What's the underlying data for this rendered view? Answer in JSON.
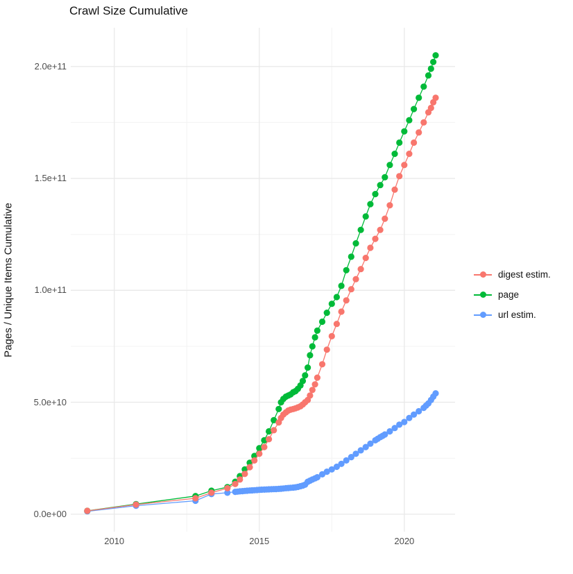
{
  "chart_data": {
    "type": "line",
    "title": "Crawl Size Cumulative",
    "xlabel": "",
    "ylabel": "Pages / Unique Items Cumulative",
    "legend_position": "right",
    "grid": true,
    "panel_background": "#ffffff",
    "grid_major_color": "#e9e9e9",
    "grid_minor_color": "#f3f3f3",
    "xlim": [
      2008.5,
      2021.75
    ],
    "ylim": [
      -7800000000.0,
      217300000000.0
    ],
    "x_ticks_major": [
      2010,
      2015,
      2020
    ],
    "x_tick_labels": [
      "2010",
      "2015",
      "2020"
    ],
    "x_ticks_minor": [
      2012.5,
      2017.5
    ],
    "y_ticks_major": [
      0,
      50000000000.0,
      100000000000.0,
      150000000000.0,
      200000000000.0
    ],
    "y_tick_labels": [
      "0.0e+00",
      "5.0e+10",
      "1.0e+11",
      "1.5e+11",
      "2.0e+11"
    ],
    "y_ticks_minor": [
      25000000000.0,
      75000000000.0,
      125000000000.0,
      175000000000.0
    ],
    "series": [
      {
        "name": "digest estim.",
        "color": "#F8766D",
        "points": [
          [
            2009.07,
            1500000000.0
          ],
          [
            2010.75,
            4300000000.0
          ],
          [
            2012.8,
            7100000000.0
          ],
          [
            2013.35,
            9600000000.0
          ],
          [
            2013.9,
            11600000000.0
          ],
          [
            2014.17,
            13500000000.0
          ],
          [
            2014.33,
            15500000000.0
          ],
          [
            2014.5,
            18000000000.0
          ],
          [
            2014.67,
            21000000000.0
          ],
          [
            2014.83,
            24000000000.0
          ],
          [
            2015.0,
            27000000000.0
          ],
          [
            2015.17,
            30000000000.0
          ],
          [
            2015.33,
            33500000000.0
          ],
          [
            2015.5,
            37500000000.0
          ],
          [
            2015.67,
            41000000000.0
          ],
          [
            2015.75,
            43000000000.0
          ],
          [
            2015.83,
            44500000000.0
          ],
          [
            2015.92,
            45500000000.0
          ],
          [
            2016.0,
            46300000000.0
          ],
          [
            2016.08,
            46700000000.0
          ],
          [
            2016.17,
            47000000000.0
          ],
          [
            2016.25,
            47300000000.0
          ],
          [
            2016.33,
            47700000000.0
          ],
          [
            2016.42,
            48200000000.0
          ],
          [
            2016.5,
            49000000000.0
          ],
          [
            2016.58,
            50000000000.0
          ],
          [
            2016.67,
            51000000000.0
          ],
          [
            2016.75,
            53000000000.0
          ],
          [
            2016.83,
            55500000000.0
          ],
          [
            2016.92,
            58000000000.0
          ],
          [
            2017.0,
            61000000000.0
          ],
          [
            2017.17,
            67000000000.0
          ],
          [
            2017.33,
            73500000000.0
          ],
          [
            2017.5,
            79500000000.0
          ],
          [
            2017.67,
            85000000000.0
          ],
          [
            2017.83,
            90500000000.0
          ],
          [
            2018.0,
            95500000000.0
          ],
          [
            2018.17,
            100500000000.0
          ],
          [
            2018.33,
            105000000000.0
          ],
          [
            2018.5,
            109500000000.0
          ],
          [
            2018.67,
            114500000000.0
          ],
          [
            2018.83,
            119000000000.0
          ],
          [
            2019.0,
            123000000000.0
          ],
          [
            2019.17,
            127000000000.0
          ],
          [
            2019.33,
            132000000000.0
          ],
          [
            2019.5,
            138000000000.0
          ],
          [
            2019.67,
            145000000000.0
          ],
          [
            2019.83,
            151000000000.0
          ],
          [
            2020.0,
            156000000000.0
          ],
          [
            2020.17,
            161000000000.0
          ],
          [
            2020.33,
            166000000000.0
          ],
          [
            2020.5,
            170500000000.0
          ],
          [
            2020.67,
            175000000000.0
          ],
          [
            2020.83,
            179500000000.0
          ],
          [
            2020.92,
            181500000000.0
          ],
          [
            2021.0,
            184000000000.0
          ],
          [
            2021.08,
            186000000000.0
          ]
        ]
      },
      {
        "name": "page",
        "color": "#00BA38",
        "points": [
          [
            2009.07,
            1500000000.0
          ],
          [
            2010.75,
            4500000000.0
          ],
          [
            2012.8,
            8100000000.0
          ],
          [
            2013.35,
            10500000000.0
          ],
          [
            2013.9,
            12100000000.0
          ],
          [
            2014.17,
            14500000000.0
          ],
          [
            2014.33,
            17000000000.0
          ],
          [
            2014.5,
            20000000000.0
          ],
          [
            2014.67,
            23000000000.0
          ],
          [
            2014.83,
            26000000000.0
          ],
          [
            2015.0,
            29500000000.0
          ],
          [
            2015.17,
            33000000000.0
          ],
          [
            2015.33,
            37000000000.0
          ],
          [
            2015.5,
            42000000000.0
          ],
          [
            2015.67,
            47000000000.0
          ],
          [
            2015.75,
            50000000000.0
          ],
          [
            2015.83,
            51500000000.0
          ],
          [
            2015.92,
            52500000000.0
          ],
          [
            2016.0,
            53000000000.0
          ],
          [
            2016.08,
            53500000000.0
          ],
          [
            2016.17,
            54500000000.0
          ],
          [
            2016.25,
            55000000000.0
          ],
          [
            2016.33,
            56000000000.0
          ],
          [
            2016.42,
            57500000000.0
          ],
          [
            2016.5,
            59500000000.0
          ],
          [
            2016.58,
            62000000000.0
          ],
          [
            2016.67,
            65500000000.0
          ],
          [
            2016.75,
            71000000000.0
          ],
          [
            2016.83,
            75000000000.0
          ],
          [
            2016.92,
            79000000000.0
          ],
          [
            2017.0,
            82000000000.0
          ],
          [
            2017.17,
            86000000000.0
          ],
          [
            2017.33,
            90000000000.0
          ],
          [
            2017.5,
            94000000000.0
          ],
          [
            2017.67,
            97000000000.0
          ],
          [
            2017.83,
            102000000000.0
          ],
          [
            2018.0,
            109000000000.0
          ],
          [
            2018.17,
            115000000000.0
          ],
          [
            2018.33,
            121000000000.0
          ],
          [
            2018.5,
            127000000000.0
          ],
          [
            2018.67,
            133000000000.0
          ],
          [
            2018.83,
            138500000000.0
          ],
          [
            2019.0,
            143000000000.0
          ],
          [
            2019.17,
            147000000000.0
          ],
          [
            2019.33,
            150500000000.0
          ],
          [
            2019.5,
            156000000000.0
          ],
          [
            2019.67,
            161000000000.0
          ],
          [
            2019.83,
            166000000000.0
          ],
          [
            2020.0,
            171000000000.0
          ],
          [
            2020.17,
            176000000000.0
          ],
          [
            2020.33,
            181000000000.0
          ],
          [
            2020.5,
            186000000000.0
          ],
          [
            2020.67,
            191000000000.0
          ],
          [
            2020.83,
            196000000000.0
          ],
          [
            2020.92,
            199000000000.0
          ],
          [
            2021.0,
            202000000000.0
          ],
          [
            2021.08,
            205000000000.0
          ]
        ]
      },
      {
        "name": "url estim.",
        "color": "#619CFF",
        "points": [
          [
            2009.07,
            1300000000.0
          ],
          [
            2010.75,
            3800000000.0
          ],
          [
            2012.8,
            6000000000.0
          ],
          [
            2013.35,
            9000000000.0
          ],
          [
            2013.9,
            9600000000.0
          ],
          [
            2014.17,
            10000000000.0
          ],
          [
            2014.25,
            10100000000.0
          ],
          [
            2014.33,
            10200000000.0
          ],
          [
            2014.42,
            10300000000.0
          ],
          [
            2014.5,
            10400000000.0
          ],
          [
            2014.58,
            10500000000.0
          ],
          [
            2014.67,
            10600000000.0
          ],
          [
            2014.75,
            10650000000.0
          ],
          [
            2014.83,
            10700000000.0
          ],
          [
            2014.92,
            10800000000.0
          ],
          [
            2015.0,
            10900000000.0
          ],
          [
            2015.08,
            10950000000.0
          ],
          [
            2015.17,
            11000000000.0
          ],
          [
            2015.25,
            11050000000.0
          ],
          [
            2015.33,
            11100000000.0
          ],
          [
            2015.42,
            11150000000.0
          ],
          [
            2015.5,
            11200000000.0
          ],
          [
            2015.58,
            11250000000.0
          ],
          [
            2015.67,
            11300000000.0
          ],
          [
            2015.75,
            11400000000.0
          ],
          [
            2015.83,
            11500000000.0
          ],
          [
            2015.92,
            11600000000.0
          ],
          [
            2016.0,
            11700000000.0
          ],
          [
            2016.08,
            11800000000.0
          ],
          [
            2016.17,
            11900000000.0
          ],
          [
            2016.25,
            12000000000.0
          ],
          [
            2016.33,
            12200000000.0
          ],
          [
            2016.42,
            12500000000.0
          ],
          [
            2016.5,
            12800000000.0
          ],
          [
            2016.58,
            13200000000.0
          ],
          [
            2016.67,
            14500000000.0
          ],
          [
            2016.75,
            15000000000.0
          ],
          [
            2016.83,
            15500000000.0
          ],
          [
            2016.92,
            16000000000.0
          ],
          [
            2017.0,
            16500000000.0
          ],
          [
            2017.17,
            17800000000.0
          ],
          [
            2017.33,
            19000000000.0
          ],
          [
            2017.5,
            20000000000.0
          ],
          [
            2017.67,
            21200000000.0
          ],
          [
            2017.83,
            22500000000.0
          ],
          [
            2018.0,
            24000000000.0
          ],
          [
            2018.17,
            25500000000.0
          ],
          [
            2018.33,
            27000000000.0
          ],
          [
            2018.5,
            28500000000.0
          ],
          [
            2018.67,
            30000000000.0
          ],
          [
            2018.83,
            31500000000.0
          ],
          [
            2019.0,
            33000000000.0
          ],
          [
            2019.08,
            33700000000.0
          ],
          [
            2019.17,
            34400000000.0
          ],
          [
            2019.25,
            35000000000.0
          ],
          [
            2019.33,
            35600000000.0
          ],
          [
            2019.5,
            37000000000.0
          ],
          [
            2019.67,
            38500000000.0
          ],
          [
            2019.83,
            40000000000.0
          ],
          [
            2020.0,
            41200000000.0
          ],
          [
            2020.17,
            43000000000.0
          ],
          [
            2020.33,
            44500000000.0
          ],
          [
            2020.5,
            46000000000.0
          ],
          [
            2020.67,
            47500000000.0
          ],
          [
            2020.75,
            48500000000.0
          ],
          [
            2020.83,
            49500000000.0
          ],
          [
            2020.92,
            51000000000.0
          ],
          [
            2021.0,
            52500000000.0
          ],
          [
            2021.08,
            54000000000.0
          ]
        ]
      }
    ]
  }
}
